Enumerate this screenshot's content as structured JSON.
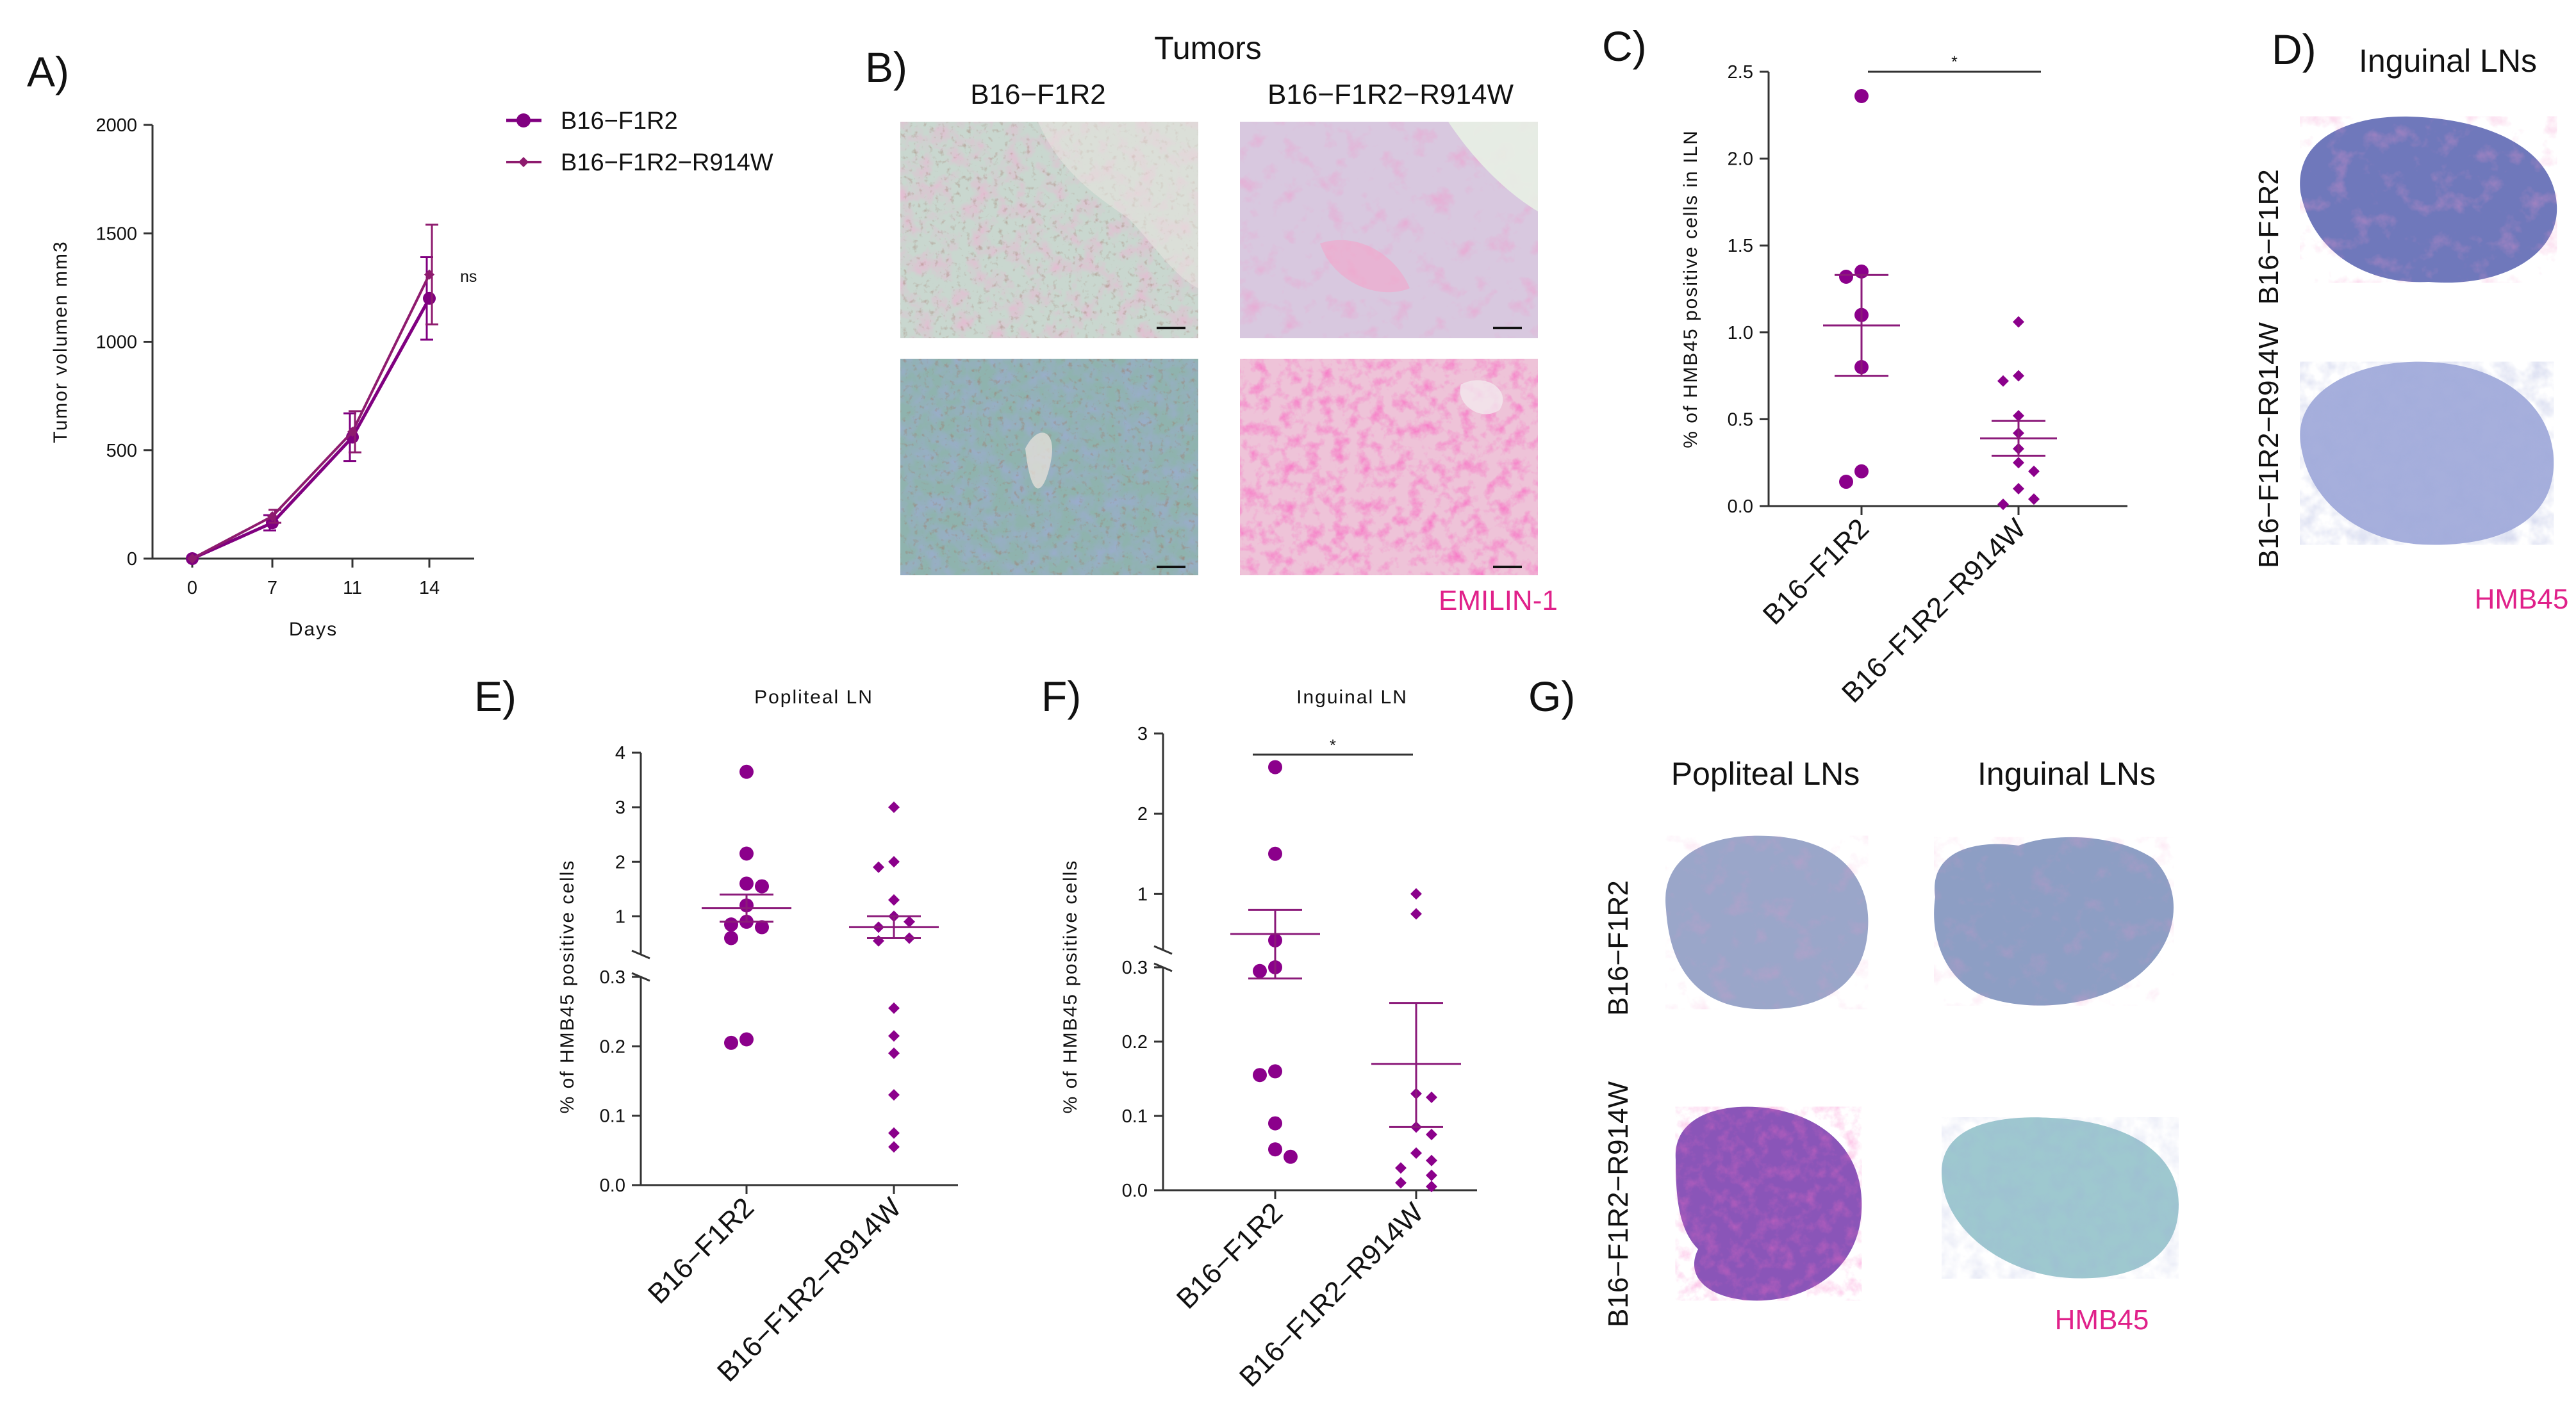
{
  "figure": {
    "panel_labels": {
      "A": "A)",
      "B": "B)",
      "C": "C)",
      "D": "D)",
      "E": "E)",
      "F": "F)",
      "G": "G)"
    },
    "colors": {
      "series1": "#800080",
      "series2": "#8e1b6e",
      "points": "#8b008b",
      "stain": "#e0218a"
    }
  },
  "panel_b": {
    "title": "Tumors",
    "col1": "B16−F1R2",
    "col2": "B16−F1R2−R914W",
    "stain": "EMILIN-1"
  },
  "panel_d": {
    "title": "Inguinal LNs",
    "row1": "B16−F1R2",
    "row2": "B16−F1R2−R914W",
    "stain": "HMB45"
  },
  "panel_g": {
    "col1": "Popliteal LNs",
    "col2": "Inguinal LNs",
    "row1": "B16−F1R2",
    "row2": "B16−F1R2−R914W",
    "stain": "HMB45"
  },
  "chart_data": [
    {
      "id": "A",
      "type": "line",
      "xlabel": "Days",
      "ylabel": "Tumor volumen mm3",
      "x": [
        0,
        7,
        11,
        14
      ],
      "xticks": [
        "0",
        "7",
        "11",
        "14"
      ],
      "ylim": [
        0,
        2000
      ],
      "yticks": [
        "0",
        "500",
        "1000",
        "1500",
        "2000"
      ],
      "annotation": "ns",
      "series": [
        {
          "name": "B16−F1R2",
          "marker": "circle",
          "values": [
            0,
            165,
            560,
            1200
          ],
          "err": [
            0,
            35,
            110,
            190
          ]
        },
        {
          "name": "B16−F1R2−R914W",
          "marker": "diamond",
          "values": [
            0,
            195,
            585,
            1310
          ],
          "err": [
            0,
            30,
            95,
            230
          ]
        }
      ]
    },
    {
      "id": "C",
      "type": "scatter",
      "ylabel": "% of HMB45 positive cells in ILN",
      "ylim": [
        0,
        2.5
      ],
      "yticks": [
        "0.0",
        "0.5",
        "1.0",
        "1.5",
        "2.0",
        "2.5"
      ],
      "categories": [
        "B16−F1R2",
        "B16−F1R2−R914W"
      ],
      "significance": "*",
      "groups": [
        {
          "name": "B16−F1R2",
          "marker": "circle",
          "mean": 1.04,
          "sem_low": 0.75,
          "sem_high": 1.33,
          "points": [
            2.36,
            1.35,
            1.32,
            1.1,
            0.8,
            0.2,
            0.14
          ]
        },
        {
          "name": "B16−F1R2−R914W",
          "marker": "diamond",
          "mean": 0.39,
          "sem_low": 0.29,
          "sem_high": 0.49,
          "points": [
            1.06,
            0.75,
            0.72,
            0.52,
            0.42,
            0.33,
            0.25,
            0.2,
            0.1,
            0.04,
            0.01
          ]
        }
      ]
    },
    {
      "id": "E",
      "type": "scatter",
      "title": "Popliteal LN",
      "ylabel": "% of HMB45 positive cells",
      "broken_axis": true,
      "yticks_low": [
        "0.0",
        "0.1",
        "0.2",
        "0.3"
      ],
      "yticks_high": [
        "1",
        "2",
        "3",
        "4"
      ],
      "categories": [
        "B16−F1R2",
        "B16−F1R2−R914W"
      ],
      "groups": [
        {
          "name": "B16−F1R2",
          "marker": "circle",
          "mean": 1.15,
          "sem_low": 0.9,
          "sem_high": 1.4,
          "points": [
            3.65,
            2.15,
            1.6,
            1.55,
            1.2,
            0.9,
            0.85,
            0.8,
            0.6,
            0.21,
            0.205
          ]
        },
        {
          "name": "B16−F1R2−R914W",
          "marker": "diamond",
          "mean": 0.8,
          "sem_low": 0.6,
          "sem_high": 1.0,
          "points": [
            3.0,
            2.0,
            1.9,
            1.3,
            1.0,
            0.9,
            0.8,
            0.6,
            0.55,
            0.255,
            0.215,
            0.19,
            0.13,
            0.075,
            0.055
          ]
        }
      ]
    },
    {
      "id": "F",
      "type": "scatter",
      "title": "Inguinal LN",
      "ylabel": "% of HMB45 positive cells",
      "broken_axis": true,
      "yticks_low": [
        "0.0",
        "0.1",
        "0.2",
        "0.3"
      ],
      "yticks_high": [
        "1",
        "2",
        "3"
      ],
      "categories": [
        "B16−F1R2",
        "B16−F1R2−R914W"
      ],
      "significance": "*",
      "groups": [
        {
          "name": "B16−F1R2",
          "marker": "circle",
          "mean": 0.5,
          "sem_low": 0.285,
          "sem_high": 0.8,
          "points": [
            2.58,
            1.5,
            0.42,
            0.3,
            0.295,
            0.16,
            0.155,
            0.09,
            0.055,
            0.045
          ]
        },
        {
          "name": "B16−F1R2−R914W",
          "marker": "diamond",
          "mean": 0.17,
          "sem_low": 0.085,
          "sem_high": 0.252,
          "points": [
            1.0,
            0.75,
            0.13,
            0.125,
            0.085,
            0.075,
            0.05,
            0.04,
            0.03,
            0.02,
            0.01,
            0.005
          ]
        }
      ]
    }
  ]
}
